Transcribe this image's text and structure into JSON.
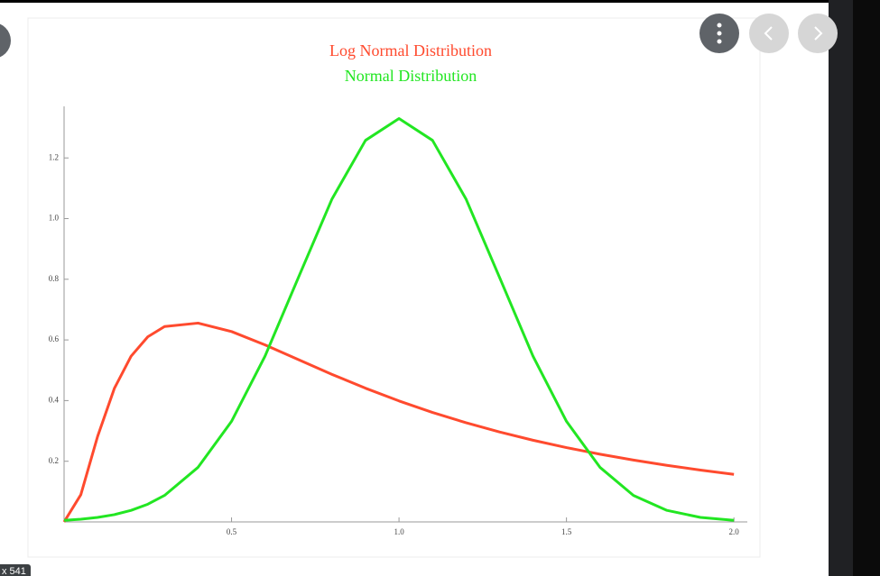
{
  "chart_data": {
    "type": "line",
    "title": "Log Normal Distribution",
    "x": [
      0,
      0.05,
      0.1,
      0.15,
      0.2,
      0.25,
      0.3,
      0.4,
      0.5,
      0.6,
      0.7,
      0.8,
      0.9,
      1,
      1.1,
      1.2,
      1.3,
      1.4,
      1.5,
      1.6,
      1.7,
      1.8,
      1.9,
      2
    ],
    "series": [
      {
        "name": "Log Normal Distribution",
        "color": "#ff4a2e",
        "values": [
          0,
          0.0898,
          0.2816,
          0.4399,
          0.5463,
          0.6104,
          0.6442,
          0.6555,
          0.6276,
          0.5836,
          0.5348,
          0.4864,
          0.4408,
          0.3989,
          0.361,
          0.327,
          0.2965,
          0.2693,
          0.245,
          0.2233,
          0.2039,
          0.1865,
          0.1709,
          0.1569
        ]
      },
      {
        "name": "Normal Distribution",
        "color": "#22e622",
        "values": [
          0.0051,
          0.0088,
          0.0148,
          0.024,
          0.038,
          0.0584,
          0.0874,
          0.18,
          0.3316,
          0.5467,
          0.8066,
          1.0648,
          1.258,
          1.3298,
          1.258,
          1.0648,
          0.8066,
          0.5467,
          0.3316,
          0.18,
          0.0874,
          0.038,
          0.0148,
          0.0051
        ]
      }
    ],
    "xlim": [
      0,
      2.04
    ],
    "ylim": [
      0,
      1.37
    ],
    "xticks": [
      0.5,
      {
        "value": 1,
        "label": "1.0"
      },
      1.5,
      {
        "value": 2,
        "label": "2.0"
      }
    ],
    "yticks": [
      0.2,
      0.4,
      0.6,
      0.8,
      {
        "value": 1,
        "label": "1.0"
      },
      1.2
    ],
    "legend": "top"
  },
  "ui": {
    "badge": "x 541"
  }
}
